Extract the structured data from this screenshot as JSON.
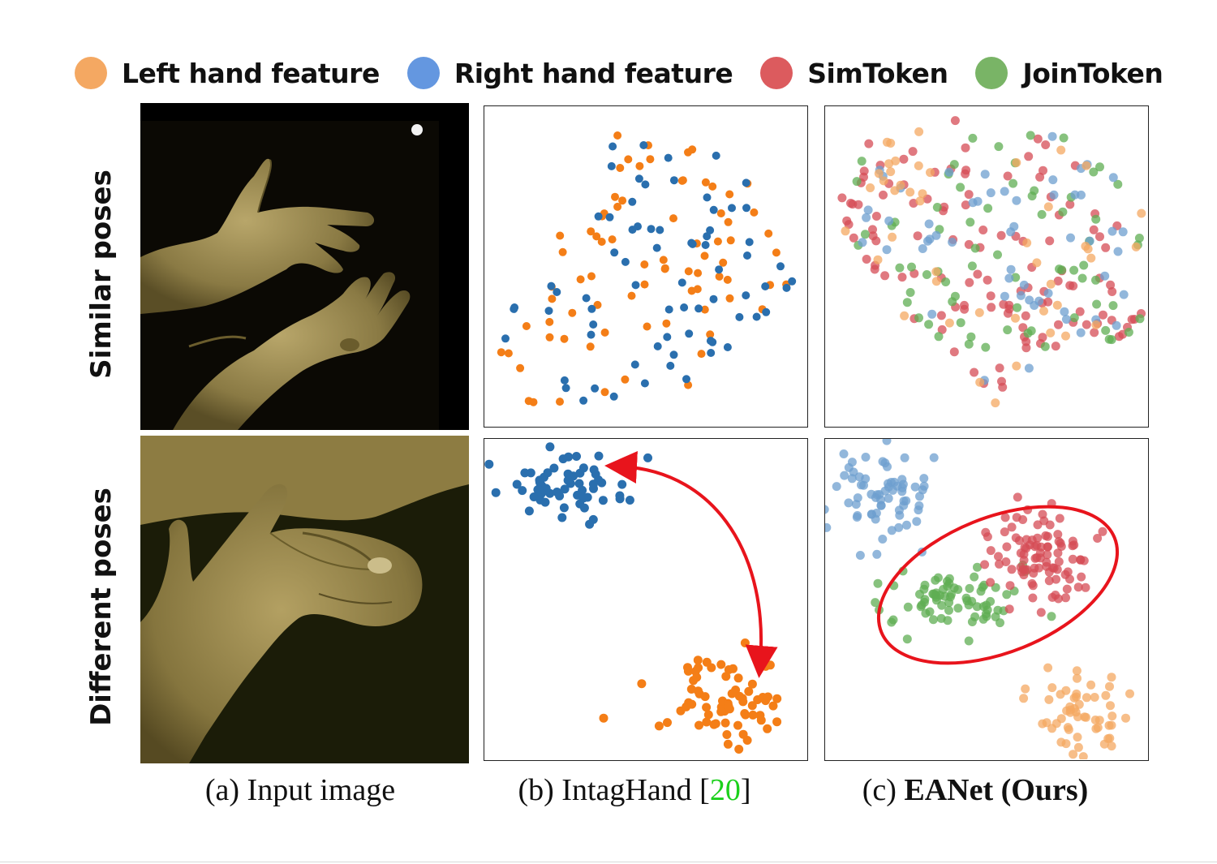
{
  "legend": [
    {
      "label": "Left hand feature",
      "color": "#f4a862"
    },
    {
      "label": "Right hand feature",
      "color": "#6497e0"
    },
    {
      "label": "SimToken",
      "color": "#dc5b5e"
    },
    {
      "label": "JoinToken",
      "color": "#79b466"
    }
  ],
  "rows": {
    "top_label": "Similar poses",
    "bottom_label": "Different poses"
  },
  "captions": {
    "a": "(a) Input image",
    "b_prefix": "(b) IntagHand [",
    "b_cite": "20",
    "b_suffix": "]",
    "c_prefix": "(c) ",
    "c_bold": "EANet (Ours)"
  },
  "colors": {
    "intaghand_left": "#f47e17",
    "intaghand_right": "#2a6fae",
    "eanet_left": "#f4a862",
    "eanet_right": "#6e9fcf",
    "eanet_sim": "#d64c55",
    "eanet_join": "#5fae53",
    "annotation": "#e8141c",
    "citation": "#1bd01b"
  },
  "images": [
    {
      "name": "input-image-similar-poses",
      "description": "two hands, similar poses"
    },
    {
      "name": "input-image-different-poses",
      "description": "two interacting hands, different poses"
    }
  ]
}
